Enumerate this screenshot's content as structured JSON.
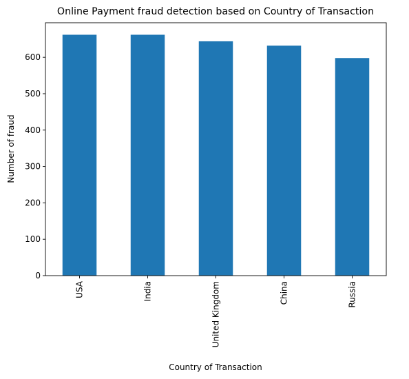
{
  "chart_data": {
    "type": "bar",
    "title": "Online Payment fraud detection based on Country of Transaction",
    "xlabel": "Country of Transaction",
    "ylabel": "Number of fraud",
    "categories": [
      "USA",
      "India",
      "United Kingdom",
      "China",
      "Russia"
    ],
    "values": [
      662,
      662,
      644,
      632,
      598
    ],
    "ylim": [
      0,
      695
    ],
    "yticks": [
      "0",
      "100",
      "200",
      "300",
      "400",
      "500",
      "600"
    ],
    "bar_color": "#1f77b4",
    "grid": false,
    "legend": "none"
  }
}
